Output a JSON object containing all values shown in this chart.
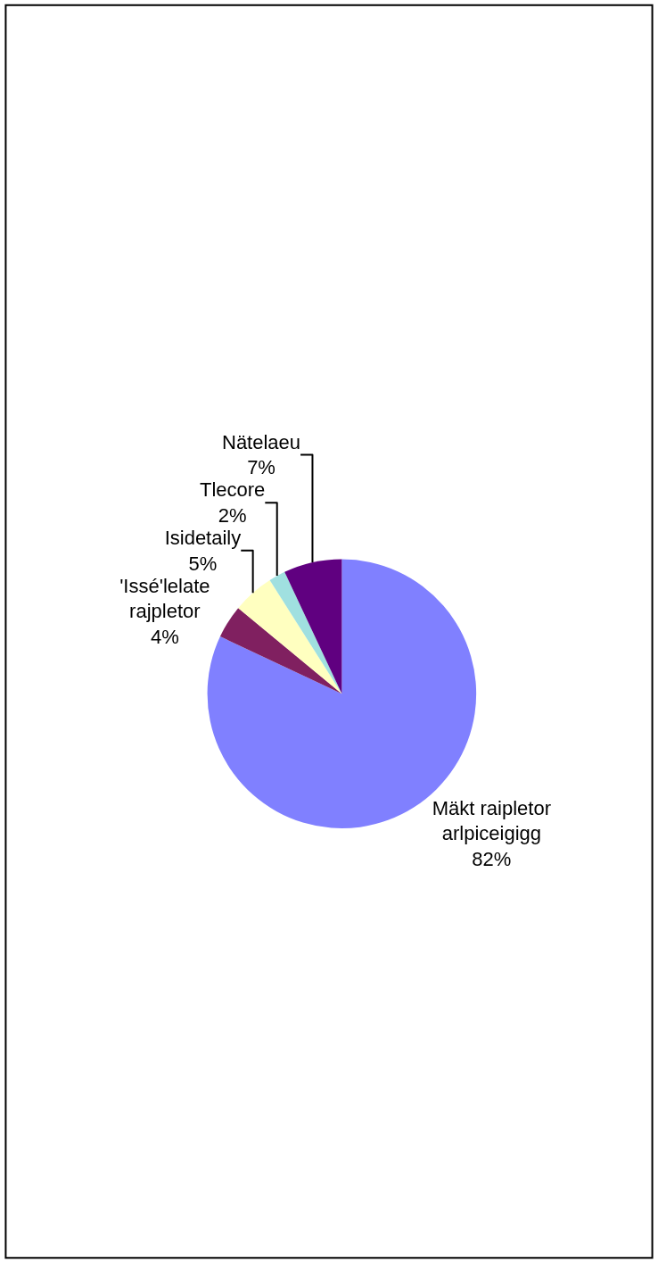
{
  "chart_data": {
    "type": "pie",
    "categories": [
      "Mäkt raipletor\narlpiceigigg",
      "'Issé'lelate\nrajpletor",
      "Isidetaily",
      "Tlecore",
      "Nätelaeu"
    ],
    "values": [
      82,
      4,
      5,
      2,
      7
    ],
    "value_labels": [
      "82%",
      "4%",
      "5%",
      "2%",
      "7%"
    ],
    "colors": [
      "#8080ff",
      "#802060",
      "#ffffc0",
      "#a0e0e0",
      "#600080"
    ],
    "legend": false
  }
}
